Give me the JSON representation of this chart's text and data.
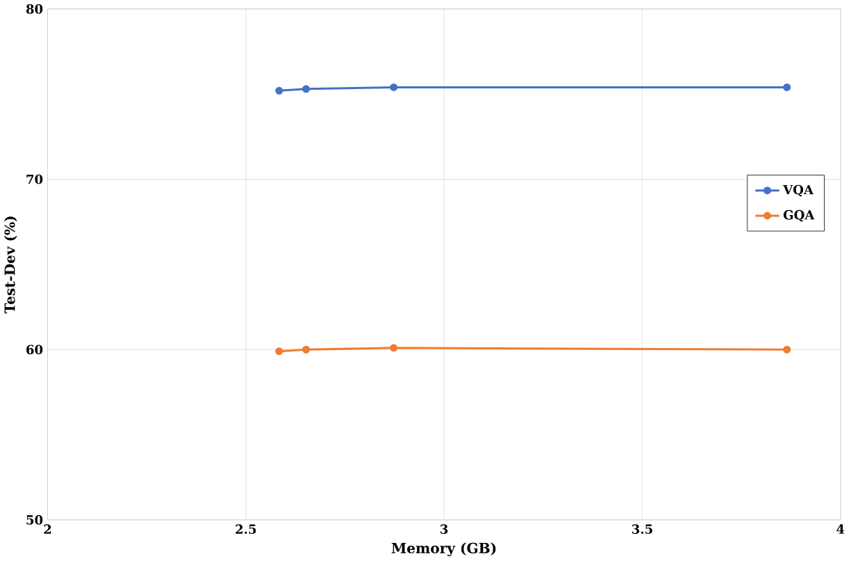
{
  "chart_data": {
    "type": "line",
    "xlabel": "Memory (GB)",
    "ylabel": "Test-Dev (%)",
    "xlim": [
      2,
      4
    ],
    "xticks": [
      2,
      2.5,
      3,
      3.5,
      4
    ],
    "ylim": [
      50,
      80
    ],
    "yticks": [
      50,
      60,
      70,
      80
    ],
    "grid": true,
    "legend": "right",
    "marker": "circle",
    "line_style": "solid",
    "series": [
      {
        "name": "VQA",
        "color": "#4472c4",
        "x": [
          2.584,
          2.652,
          2.873,
          3.865
        ],
        "values": [
          75.2,
          75.3,
          75.4,
          75.4
        ]
      },
      {
        "name": "GQA",
        "color": "#ed7d31",
        "x": [
          2.584,
          2.652,
          2.873,
          3.865
        ],
        "values": [
          59.9,
          60.0,
          60.1,
          60.0
        ]
      }
    ]
  }
}
